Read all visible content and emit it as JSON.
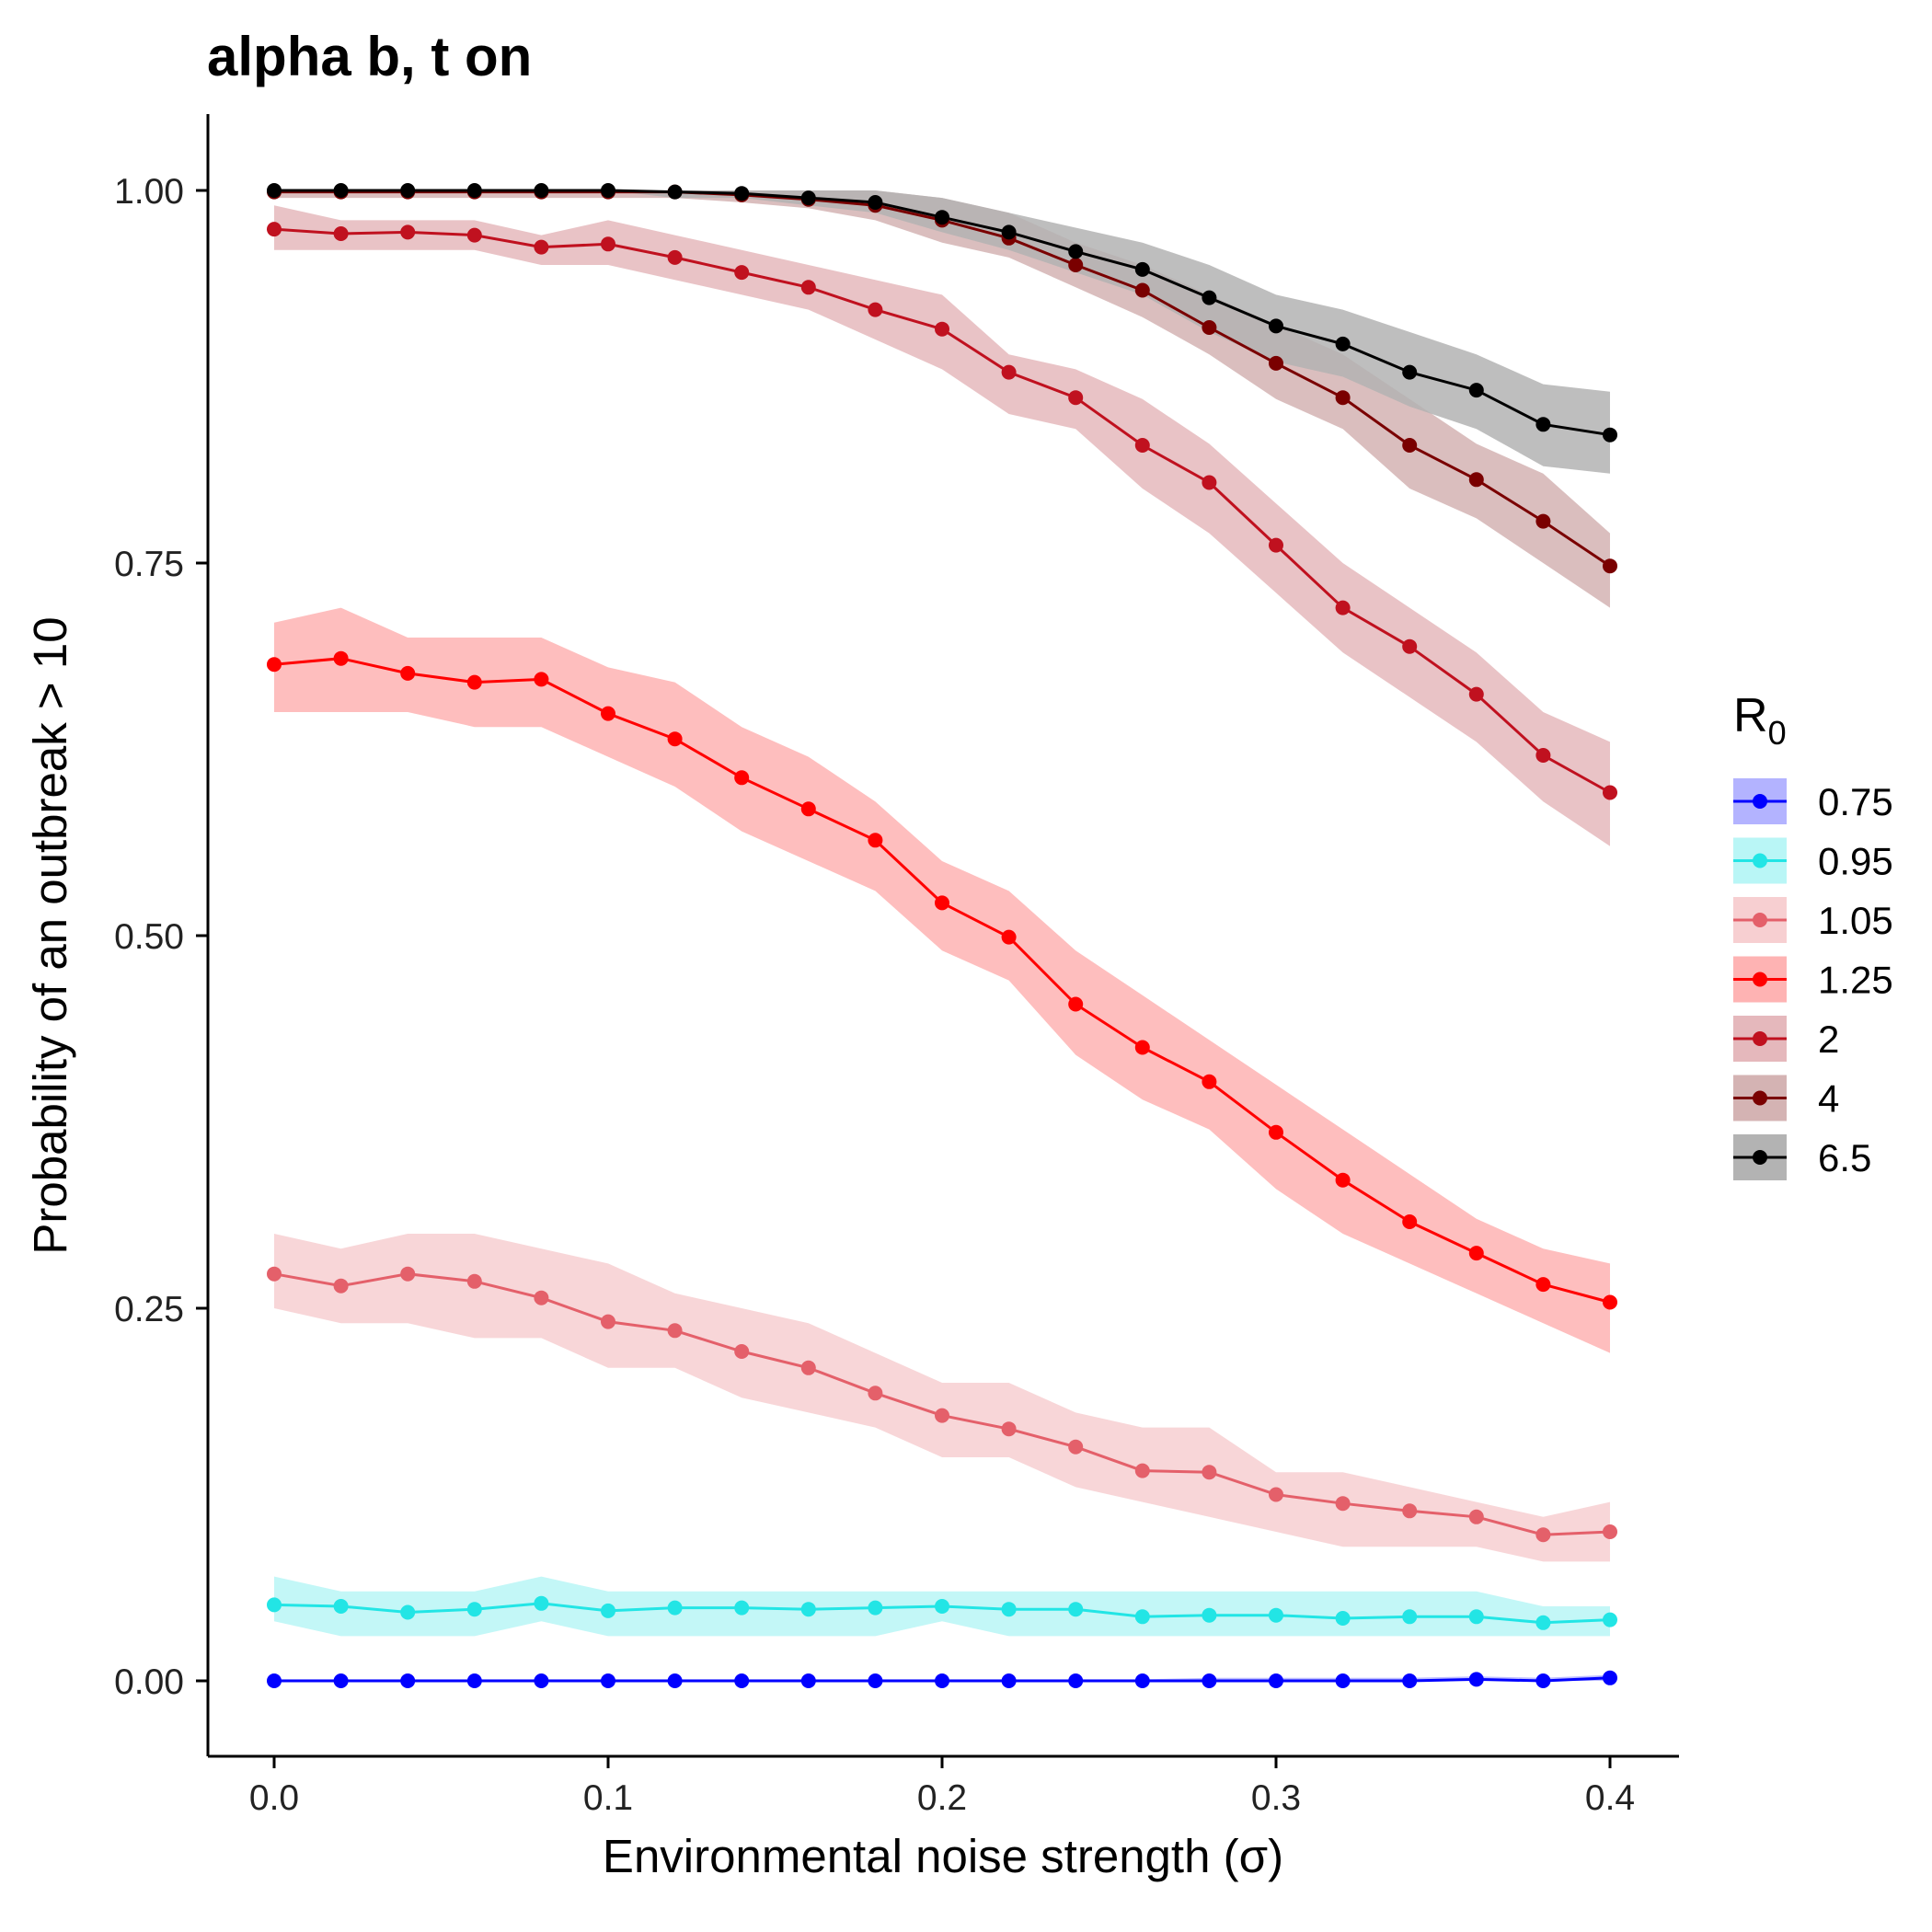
{
  "chart_data": {
    "type": "line",
    "title": "alpha b, t on",
    "xlabel": "Environmental noise strength (σ)",
    "ylabel": "Probability of an outbreak > 10",
    "legend_title": "R",
    "legend_title_subscript": "0",
    "legend_placement": "right",
    "grid": false,
    "xlim": [
      -0.02,
      0.42
    ],
    "ylim": [
      -0.05,
      1.05
    ],
    "x_ticks": [
      0.0,
      0.1,
      0.2,
      0.3,
      0.4
    ],
    "x_tick_labels": [
      "0.0",
      "0.1",
      "0.2",
      "0.3",
      "0.4"
    ],
    "y_ticks": [
      0.0,
      0.25,
      0.5,
      0.75,
      1.0
    ],
    "y_tick_labels": [
      "0.00",
      "0.25",
      "0.50",
      "0.75",
      "1.00"
    ],
    "x": [
      0.0,
      0.02,
      0.04,
      0.06,
      0.08,
      0.1,
      0.12,
      0.14,
      0.16,
      0.18,
      0.2,
      0.22,
      0.24,
      0.26,
      0.28,
      0.3,
      0.32,
      0.34,
      0.36,
      0.38,
      0.4
    ],
    "series": [
      {
        "name": "0.75",
        "color": "#0000ff",
        "band_color": "#b3b3ff",
        "values": [
          0.0,
          0.0,
          0.0,
          0.0,
          0.0,
          0.0,
          0.0,
          0.0,
          0.0,
          0.0,
          0.0,
          0.0,
          0.0,
          0.0,
          0.0,
          0.0,
          0.0,
          0.0,
          0.001,
          0.0,
          0.002
        ],
        "lower": [
          0.0,
          0.0,
          0.0,
          0.0,
          0.0,
          0.0,
          0.0,
          0.0,
          0.0,
          0.0,
          0.0,
          0.0,
          0.0,
          0.0,
          0.0,
          0.0,
          0.0,
          0.0,
          0.0,
          0.0,
          0.0
        ],
        "upper": [
          0.001,
          0.001,
          0.001,
          0.001,
          0.001,
          0.001,
          0.001,
          0.001,
          0.001,
          0.001,
          0.001,
          0.001,
          0.001,
          0.001,
          0.002,
          0.002,
          0.002,
          0.002,
          0.003,
          0.002,
          0.004
        ]
      },
      {
        "name": "0.95",
        "color": "#22e5e5",
        "band_color": "#b9f6f6",
        "values": [
          0.051,
          0.05,
          0.046,
          0.048,
          0.052,
          0.047,
          0.049,
          0.049,
          0.048,
          0.049,
          0.05,
          0.048,
          0.048,
          0.043,
          0.044,
          0.044,
          0.042,
          0.043,
          0.043,
          0.039,
          0.041
        ],
        "lower": [
          0.04,
          0.03,
          0.03,
          0.03,
          0.04,
          0.03,
          0.03,
          0.03,
          0.03,
          0.03,
          0.04,
          0.03,
          0.03,
          0.03,
          0.03,
          0.03,
          0.03,
          0.03,
          0.03,
          0.03,
          0.03
        ],
        "upper": [
          0.07,
          0.06,
          0.06,
          0.06,
          0.07,
          0.06,
          0.06,
          0.06,
          0.06,
          0.06,
          0.06,
          0.06,
          0.06,
          0.06,
          0.06,
          0.06,
          0.06,
          0.06,
          0.06,
          0.05,
          0.05
        ]
      },
      {
        "name": "1.05",
        "color": "#e4606a",
        "band_color": "#f7cfd1",
        "values": [
          0.273,
          0.265,
          0.273,
          0.268,
          0.257,
          0.241,
          0.235,
          0.221,
          0.21,
          0.193,
          0.178,
          0.169,
          0.157,
          0.141,
          0.14,
          0.125,
          0.119,
          0.114,
          0.11,
          0.098,
          0.1
        ],
        "lower": [
          0.25,
          0.24,
          0.24,
          0.23,
          0.23,
          0.21,
          0.21,
          0.19,
          0.18,
          0.17,
          0.15,
          0.15,
          0.13,
          0.12,
          0.11,
          0.1,
          0.09,
          0.09,
          0.09,
          0.08,
          0.08
        ],
        "upper": [
          0.3,
          0.29,
          0.3,
          0.3,
          0.29,
          0.28,
          0.26,
          0.25,
          0.24,
          0.22,
          0.2,
          0.2,
          0.18,
          0.17,
          0.17,
          0.14,
          0.14,
          0.13,
          0.12,
          0.11,
          0.12
        ]
      },
      {
        "name": "1.25",
        "color": "#ff0000",
        "band_color": "#feb3b3",
        "values": [
          0.682,
          0.686,
          0.676,
          0.67,
          0.672,
          0.649,
          0.632,
          0.606,
          0.585,
          0.564,
          0.522,
          0.499,
          0.454,
          0.425,
          0.402,
          0.368,
          0.336,
          0.308,
          0.287,
          0.266,
          0.254
        ],
        "lower": [
          0.65,
          0.65,
          0.65,
          0.64,
          0.64,
          0.62,
          0.6,
          0.57,
          0.55,
          0.53,
          0.49,
          0.47,
          0.42,
          0.39,
          0.37,
          0.33,
          0.3,
          0.28,
          0.26,
          0.24,
          0.22
        ],
        "upper": [
          0.71,
          0.72,
          0.7,
          0.7,
          0.7,
          0.68,
          0.67,
          0.64,
          0.62,
          0.59,
          0.55,
          0.53,
          0.49,
          0.46,
          0.43,
          0.4,
          0.37,
          0.34,
          0.31,
          0.29,
          0.28
        ]
      },
      {
        "name": "2",
        "color": "#c0111f",
        "band_color": "#e5b8bc",
        "values": [
          0.974,
          0.971,
          0.972,
          0.97,
          0.962,
          0.964,
          0.955,
          0.945,
          0.935,
          0.92,
          0.907,
          0.878,
          0.861,
          0.829,
          0.804,
          0.762,
          0.72,
          0.694,
          0.662,
          0.621,
          0.596
        ],
        "lower": [
          0.96,
          0.96,
          0.96,
          0.96,
          0.95,
          0.95,
          0.94,
          0.93,
          0.92,
          0.9,
          0.88,
          0.85,
          0.84,
          0.8,
          0.77,
          0.73,
          0.69,
          0.66,
          0.63,
          0.59,
          0.56
        ],
        "upper": [
          0.99,
          0.98,
          0.98,
          0.98,
          0.97,
          0.98,
          0.97,
          0.96,
          0.95,
          0.94,
          0.93,
          0.89,
          0.88,
          0.86,
          0.83,
          0.79,
          0.75,
          0.72,
          0.69,
          0.65,
          0.63
        ]
      },
      {
        "name": "4",
        "color": "#7a0000",
        "band_color": "#d4b3b3",
        "values": [
          0.999,
          0.999,
          0.999,
          0.999,
          0.999,
          0.999,
          0.999,
          0.997,
          0.994,
          0.99,
          0.98,
          0.968,
          0.95,
          0.933,
          0.908,
          0.884,
          0.861,
          0.829,
          0.806,
          0.778,
          0.748
        ],
        "lower": [
          0.995,
          0.995,
          0.995,
          0.995,
          0.995,
          0.995,
          0.995,
          0.992,
          0.988,
          0.98,
          0.965,
          0.955,
          0.935,
          0.915,
          0.89,
          0.86,
          0.84,
          0.8,
          0.78,
          0.75,
          0.72
        ],
        "upper": [
          1.0,
          1.0,
          1.0,
          1.0,
          1.0,
          1.0,
          1.0,
          1.0,
          1.0,
          1.0,
          0.995,
          0.985,
          0.965,
          0.95,
          0.93,
          0.91,
          0.89,
          0.86,
          0.83,
          0.81,
          0.77
        ]
      },
      {
        "name": "6.5",
        "color": "#000000",
        "band_color": "#b3b3b3",
        "values": [
          1.0,
          1.0,
          1.0,
          1.0,
          1.0,
          1.0,
          0.999,
          0.998,
          0.995,
          0.992,
          0.982,
          0.972,
          0.959,
          0.947,
          0.928,
          0.909,
          0.897,
          0.878,
          0.866,
          0.843,
          0.836
        ],
        "lower": [
          1.0,
          1.0,
          1.0,
          1.0,
          1.0,
          1.0,
          0.995,
          0.995,
          0.99,
          0.985,
          0.972,
          0.96,
          0.945,
          0.93,
          0.905,
          0.885,
          0.875,
          0.855,
          0.84,
          0.815,
          0.81
        ],
        "upper": [
          1.0,
          1.0,
          1.0,
          1.0,
          1.0,
          1.0,
          1.0,
          1.0,
          1.0,
          1.0,
          0.995,
          0.985,
          0.975,
          0.965,
          0.95,
          0.93,
          0.92,
          0.905,
          0.89,
          0.87,
          0.865
        ]
      }
    ]
  }
}
